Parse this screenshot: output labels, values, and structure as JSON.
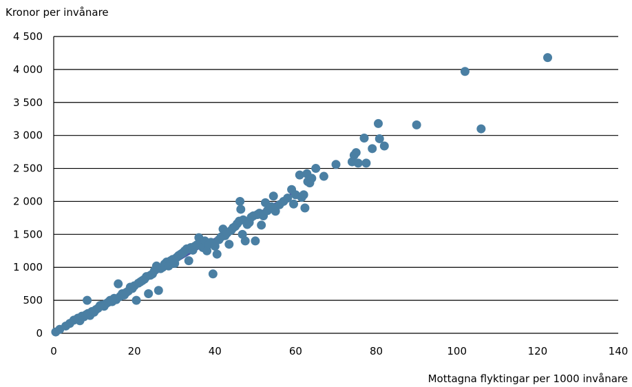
{
  "chart_data": {
    "type": "scatter",
    "title": "",
    "ylabel": "Kronor per invånare",
    "xlabel": "Mottagna flyktingar per 1000 invånare",
    "xlim": [
      0,
      140
    ],
    "ylim": [
      0,
      4500
    ],
    "xticks": [
      0,
      20,
      40,
      60,
      80,
      100,
      120,
      140
    ],
    "yticks": [
      0,
      500,
      1000,
      1500,
      2000,
      2500,
      3000,
      3500,
      4000,
      4500
    ],
    "xtick_labels": [
      "0",
      "20",
      "40",
      "60",
      "80",
      "100",
      "120",
      "140"
    ],
    "ytick_labels": [
      "0",
      "500",
      "1 000",
      "1 500",
      "2 000",
      "2 500",
      "3 000",
      "3 500",
      "4 000",
      "4 500"
    ],
    "grid": "horizontal",
    "colors": {
      "points": "#4a7fa3",
      "trend": "#4a5aa8",
      "grid": "#000000"
    },
    "trend_line": {
      "x": [
        0,
        60
      ],
      "y": [
        0,
        2150
      ]
    },
    "points": [
      [
        0.5,
        20
      ],
      [
        1.5,
        60
      ],
      [
        3,
        110
      ],
      [
        4,
        150
      ],
      [
        5,
        200
      ],
      [
        6,
        230
      ],
      [
        6.5,
        190
      ],
      [
        7,
        260
      ],
      [
        7.5,
        250
      ],
      [
        8,
        280
      ],
      [
        8.3,
        500
      ],
      [
        8.5,
        300
      ],
      [
        9,
        270
      ],
      [
        9.5,
        330
      ],
      [
        10,
        320
      ],
      [
        10.5,
        360
      ],
      [
        11,
        380
      ],
      [
        11.5,
        420
      ],
      [
        12,
        430
      ],
      [
        12.5,
        410
      ],
      [
        13,
        450
      ],
      [
        13.5,
        470
      ],
      [
        14,
        500
      ],
      [
        14.5,
        480
      ],
      [
        15,
        530
      ],
      [
        15.5,
        510
      ],
      [
        16,
        750
      ],
      [
        16.5,
        560
      ],
      [
        17,
        600
      ],
      [
        17.5,
        580
      ],
      [
        18,
        620
      ],
      [
        18.5,
        640
      ],
      [
        19,
        700
      ],
      [
        19.5,
        680
      ],
      [
        20,
        720
      ],
      [
        20.5,
        500
      ],
      [
        21,
        760
      ],
      [
        21.5,
        780
      ],
      [
        22,
        800
      ],
      [
        22.5,
        820
      ],
      [
        23,
        860
      ],
      [
        23.5,
        600
      ],
      [
        24,
        880
      ],
      [
        24.5,
        900
      ],
      [
        25,
        950
      ],
      [
        25.5,
        1020
      ],
      [
        26,
        650
      ],
      [
        26.5,
        980
      ],
      [
        27,
        1000
      ],
      [
        27.5,
        1050
      ],
      [
        28,
        1080
      ],
      [
        28.5,
        1020
      ],
      [
        29,
        1100
      ],
      [
        29.5,
        1120
      ],
      [
        30,
        1060
      ],
      [
        30.5,
        1150
      ],
      [
        31,
        1180
      ],
      [
        31.5,
        1200
      ],
      [
        32,
        1220
      ],
      [
        32.5,
        1250
      ],
      [
        33,
        1280
      ],
      [
        33.5,
        1100
      ],
      [
        34,
        1300
      ],
      [
        34.5,
        1260
      ],
      [
        35,
        1320
      ],
      [
        35.5,
        1340
      ],
      [
        36,
        1450
      ],
      [
        36.5,
        1380
      ],
      [
        37,
        1300
      ],
      [
        37.5,
        1400
      ],
      [
        38,
        1250
      ],
      [
        38.5,
        1350
      ],
      [
        39,
        1380
      ],
      [
        39.5,
        900
      ],
      [
        40,
        1320
      ],
      [
        40.5,
        1200
      ],
      [
        41,
        1420
      ],
      [
        41.5,
        1460
      ],
      [
        42,
        1580
      ],
      [
        42.5,
        1480
      ],
      [
        43,
        1520
      ],
      [
        43.5,
        1350
      ],
      [
        44,
        1560
      ],
      [
        44.5,
        1600
      ],
      [
        45,
        1620
      ],
      [
        45.5,
        1660
      ],
      [
        46,
        1700
      ],
      [
        46.2,
        2000
      ],
      [
        46.4,
        1880
      ],
      [
        46.8,
        1500
      ],
      [
        47,
        1720
      ],
      [
        47.5,
        1400
      ],
      [
        48,
        1650
      ],
      [
        48.5,
        1680
      ],
      [
        49,
        1760
      ],
      [
        49.5,
        1780
      ],
      [
        50,
        1400
      ],
      [
        50.5,
        1800
      ],
      [
        51,
        1820
      ],
      [
        51.5,
        1640
      ],
      [
        52,
        1780
      ],
      [
        52.5,
        1980
      ],
      [
        53,
        1860
      ],
      [
        54,
        1920
      ],
      [
        54.5,
        2080
      ],
      [
        55,
        1850
      ],
      [
        56,
        1950
      ],
      [
        57,
        2000
      ],
      [
        58,
        2050
      ],
      [
        59,
        2180
      ],
      [
        59.5,
        1960
      ],
      [
        60,
        2100
      ],
      [
        61,
        2400
      ],
      [
        61.5,
        2060
      ],
      [
        62,
        2100
      ],
      [
        62.3,
        1900
      ],
      [
        62.8,
        2420
      ],
      [
        63,
        2300
      ],
      [
        63.5,
        2280
      ],
      [
        64,
        2350
      ],
      [
        65,
        2500
      ],
      [
        67,
        2380
      ],
      [
        70,
        2560
      ],
      [
        74,
        2600
      ],
      [
        74.5,
        2700
      ],
      [
        75,
        2740
      ],
      [
        75.5,
        2580
      ],
      [
        77,
        2960
      ],
      [
        77.5,
        2580
      ],
      [
        79,
        2800
      ],
      [
        80.5,
        3180
      ],
      [
        80.8,
        2950
      ],
      [
        82,
        2840
      ],
      [
        90,
        3160
      ],
      [
        102,
        3970
      ],
      [
        106,
        3100
      ],
      [
        122.5,
        4180
      ]
    ]
  }
}
